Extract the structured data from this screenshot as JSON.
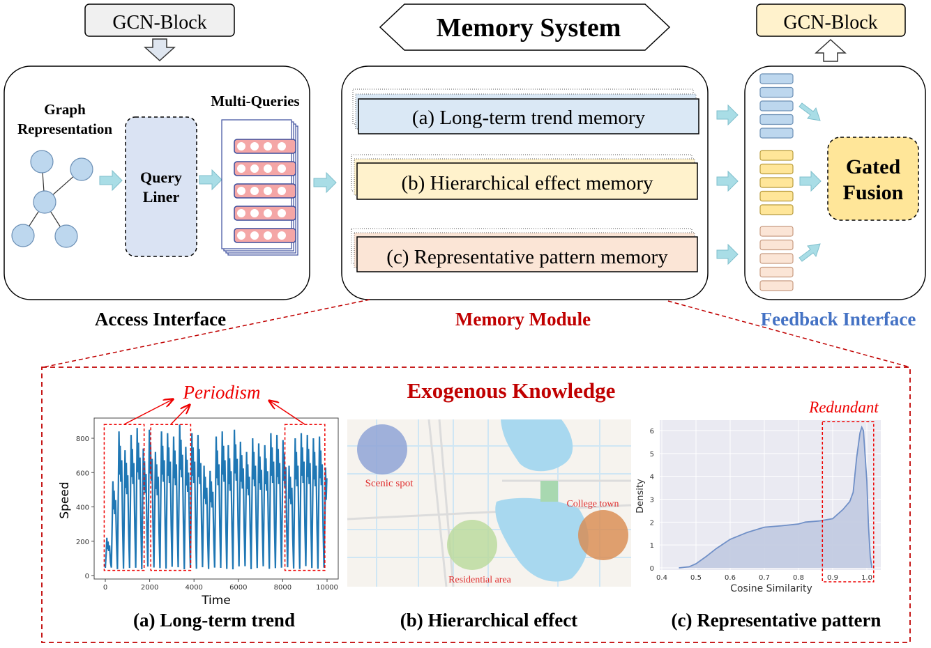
{
  "top": {
    "gcn_block_left": "GCN-Block",
    "gcn_block_right": "GCN-Block",
    "memory_system_title": "Memory System"
  },
  "access_interface": {
    "label": "Access Interface",
    "graph_label_line1": "Graph",
    "graph_label_line2": "Representation",
    "query_liner_line1": "Query",
    "query_liner_line2": "Liner",
    "multi_queries_label": "Multi-Queries"
  },
  "memory_module": {
    "label": "Memory Module",
    "memories": [
      {
        "label": "(a) Long-term trend memory",
        "color": "#dae8f5"
      },
      {
        "label": "(b) Hierarchical effect memory",
        "color": "#fff2cc"
      },
      {
        "label": "(c) Representative pattern memory",
        "color": "#fbe5d6"
      }
    ]
  },
  "feedback_interface": {
    "label": "Feedback Interface",
    "gated_fusion_line1": "Gated",
    "gated_fusion_line2": "Fusion"
  },
  "exogenous": {
    "title": "Exogenous Knowledge",
    "periodism_annotation": "Periodism",
    "redundant_annotation": "Redundant",
    "captions": [
      "(a) Long-term trend",
      "(b) Hierarchical effect",
      "(c) Representative pattern"
    ],
    "map_labels": {
      "scenic": "Scenic spot",
      "college": "College town",
      "residential": "Residential area"
    },
    "map_colors": {
      "scenic": "#8fa3d6",
      "college": "#d98a4e",
      "residential": "#b9d99a"
    }
  },
  "colors": {
    "accent_red": "#c00000",
    "feedback_blue": "#4472c4",
    "arrow_cyan": "#a9dde6"
  },
  "chart_data": [
    {
      "type": "line",
      "xlabel": "Time",
      "ylabel": "Speed",
      "xlim": [
        0,
        10000
      ],
      "ylim": [
        0,
        880
      ],
      "x_ticks": [
        "0",
        "2000",
        "4000",
        "6000",
        "8000",
        "10000"
      ],
      "y_ticks": [
        "0",
        "200",
        "400",
        "600",
        "800"
      ],
      "series_color": "#1f77b4",
      "daily_peaks": [
        220,
        550,
        840,
        730,
        820,
        860,
        740,
        850,
        720,
        840,
        830,
        810,
        880,
        750,
        830,
        820,
        640,
        610,
        810,
        840,
        760,
        850,
        780,
        720,
        800,
        770,
        760,
        830,
        820,
        790,
        640,
        800,
        830,
        820,
        800,
        810,
        630
      ],
      "daily_trough": 35,
      "highlighted_x_ranges": [
        [
          -50,
          1750
        ],
        [
          2050,
          3850
        ],
        [
          8100,
          9900
        ]
      ],
      "grid": false
    },
    {
      "type": "area",
      "xlabel": "Cosine Similarity",
      "ylabel": "Density",
      "xlim": [
        0.4,
        1.02
      ],
      "ylim": [
        0,
        6.3
      ],
      "x_ticks": [
        "0.4",
        "0.5",
        "0.6",
        "0.7",
        "0.8",
        "0.9",
        "1.0"
      ],
      "y_ticks": [
        "0",
        "1",
        "2",
        "3",
        "4",
        "5",
        "6"
      ],
      "x": [
        0.45,
        0.48,
        0.5,
        0.53,
        0.56,
        0.6,
        0.65,
        0.7,
        0.75,
        0.8,
        0.82,
        0.86,
        0.9,
        0.93,
        0.95,
        0.96,
        0.97,
        0.98,
        0.985,
        0.99,
        1.0,
        1.005,
        1.01,
        1.015
      ],
      "y": [
        0,
        0.05,
        0.18,
        0.5,
        0.85,
        1.25,
        1.55,
        1.78,
        1.84,
        1.92,
        2.0,
        2.05,
        2.15,
        2.55,
        2.9,
        3.3,
        4.8,
        5.9,
        6.15,
        6.0,
        3.8,
        1.8,
        0.5,
        0
      ],
      "fill_color": "#c3cbe2",
      "line_color": "#6f8fc7",
      "grid": true,
      "highlighted_x_range": [
        0.87,
        1.02
      ]
    }
  ]
}
